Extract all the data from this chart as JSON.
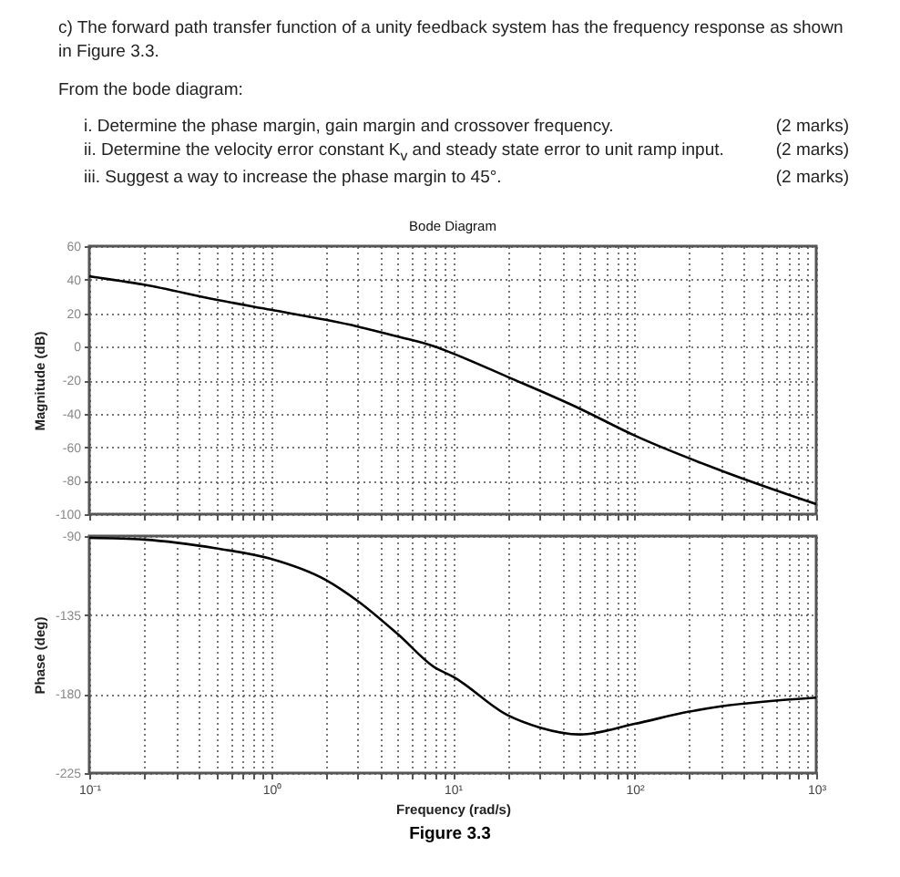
{
  "chart_data": [
    {
      "type": "line",
      "title": "Bode Diagram",
      "ylabel": "Magnitude (dB)",
      "annotations": [
        "c) The forward path transfer function of a unity feedback system has the frequency response as shown in Figure 3.3.",
        "From the bode diagram:",
        "i. Determine the phase margin, gain margin and crossover frequency.",
        "(2 marks)",
        "ii. Determine the velocity error constant K$_{v}$ and steady state error to unit ramp input.",
        "(2 marks)",
        "iii. Suggest a way to increase the phase margin to 45°.",
        "(2 marks)"
      ],
      "x": [
        0.1,
        0.2,
        0.5,
        1,
        2,
        3,
        5,
        8,
        10,
        20,
        50,
        100,
        300,
        1000
      ],
      "series": [
        {
          "color": "#000000",
          "values": [
            42,
            37,
            28,
            22,
            16,
            12,
            6,
            0,
            -4,
            -18,
            -37,
            -53,
            -74,
            -94
          ]
        }
      ],
      "log": "x",
      "xlim": [
        0.1,
        1000
      ],
      "ylim": [
        -100,
        60
      ],
      "xticks": [
        {
          "value": 0.1,
          "label": null
        },
        {
          "value": 0.2,
          "label": null
        },
        {
          "value": 0.3,
          "label": null
        },
        {
          "value": 0.4,
          "label": null
        },
        {
          "value": 0.5,
          "label": null
        },
        {
          "value": 0.6,
          "label": null
        },
        {
          "value": 0.7,
          "label": null
        },
        {
          "value": 0.8,
          "label": null
        },
        {
          "value": 0.9,
          "label": null
        },
        {
          "value": 1,
          "label": null
        },
        {
          "value": 2,
          "label": null
        },
        {
          "value": 3,
          "label": null
        },
        {
          "value": 4,
          "label": null
        },
        {
          "value": 5,
          "label": null
        },
        {
          "value": 6,
          "label": null
        },
        {
          "value": 7,
          "label": null
        },
        {
          "value": 8,
          "label": null
        },
        {
          "value": 9,
          "label": null
        },
        {
          "value": 10,
          "label": null
        },
        {
          "value": 20,
          "label": null
        },
        {
          "value": 30,
          "label": null
        },
        {
          "value": 40,
          "label": null
        },
        {
          "value": 50,
          "label": null
        },
        {
          "value": 60,
          "label": null
        },
        {
          "value": 70,
          "label": null
        },
        {
          "value": 80,
          "label": null
        },
        {
          "value": 90,
          "label": null
        },
        {
          "value": 100,
          "label": null
        },
        {
          "value": 200,
          "label": null
        },
        {
          "value": 300,
          "label": null
        },
        {
          "value": 400,
          "label": null
        },
        {
          "value": 500,
          "label": null
        },
        {
          "value": 600,
          "label": null
        },
        {
          "value": 700,
          "label": null
        },
        {
          "value": 800,
          "label": null
        },
        {
          "value": 900,
          "label": null
        },
        {
          "value": 1000,
          "label": null
        }
      ],
      "yticks": [
        -100,
        -80,
        -60,
        -40,
        -20,
        0,
        20,
        40,
        60
      ],
      "grid": true,
      "tick_labels": "y"
    },
    {
      "type": "line",
      "xlabel": "Frequency  (rad/s)",
      "ylabel": "Phase (deg)",
      "annotations": [
        "Figure 3.3"
      ],
      "x": [
        0.1,
        0.2,
        0.5,
        1,
        2,
        3,
        5,
        8,
        10,
        20,
        30,
        50,
        100,
        200,
        300,
        1000
      ],
      "series": [
        {
          "color": "#000000",
          "values": [
            -91,
            -92,
            -97,
            -103,
            -115,
            -127,
            -146,
            -165,
            -170,
            -192,
            -199,
            -203,
            -197,
            -190,
            -187,
            -182
          ]
        }
      ],
      "log": "x",
      "xlim": [
        0.1,
        1000
      ],
      "ylim": [
        -225,
        -90
      ],
      "xticks": [
        {
          "value": 0.1,
          "label": "10⁻¹"
        },
        {
          "value": 0.2,
          "label": null
        },
        {
          "value": 0.3,
          "label": null
        },
        {
          "value": 0.4,
          "label": null
        },
        {
          "value": 0.5,
          "label": null
        },
        {
          "value": 0.6,
          "label": null
        },
        {
          "value": 0.7,
          "label": null
        },
        {
          "value": 0.8,
          "label": null
        },
        {
          "value": 0.9,
          "label": null
        },
        {
          "value": 1,
          "label": "10⁰"
        },
        {
          "value": 2,
          "label": null
        },
        {
          "value": 3,
          "label": null
        },
        {
          "value": 4,
          "label": null
        },
        {
          "value": 5,
          "label": null
        },
        {
          "value": 6,
          "label": null
        },
        {
          "value": 7,
          "label": null
        },
        {
          "value": 8,
          "label": null
        },
        {
          "value": 9,
          "label": null
        },
        {
          "value": 10,
          "label": "10¹"
        },
        {
          "value": 20,
          "label": null
        },
        {
          "value": 30,
          "label": null
        },
        {
          "value": 40,
          "label": null
        },
        {
          "value": 50,
          "label": null
        },
        {
          "value": 60,
          "label": null
        },
        {
          "value": 70,
          "label": null
        },
        {
          "value": 80,
          "label": null
        },
        {
          "value": 90,
          "label": null
        },
        {
          "value": 100,
          "label": "10²"
        },
        {
          "value": 200,
          "label": null
        },
        {
          "value": 300,
          "label": null
        },
        {
          "value": 400,
          "label": null
        },
        {
          "value": 500,
          "label": null
        },
        {
          "value": 600,
          "label": null
        },
        {
          "value": 700,
          "label": null
        },
        {
          "value": 800,
          "label": null
        },
        {
          "value": 900,
          "label": null
        },
        {
          "value": 1000,
          "label": "10³"
        }
      ],
      "yticks": [
        -225,
        -180,
        -135,
        -90
      ],
      "grid": true
    }
  ]
}
